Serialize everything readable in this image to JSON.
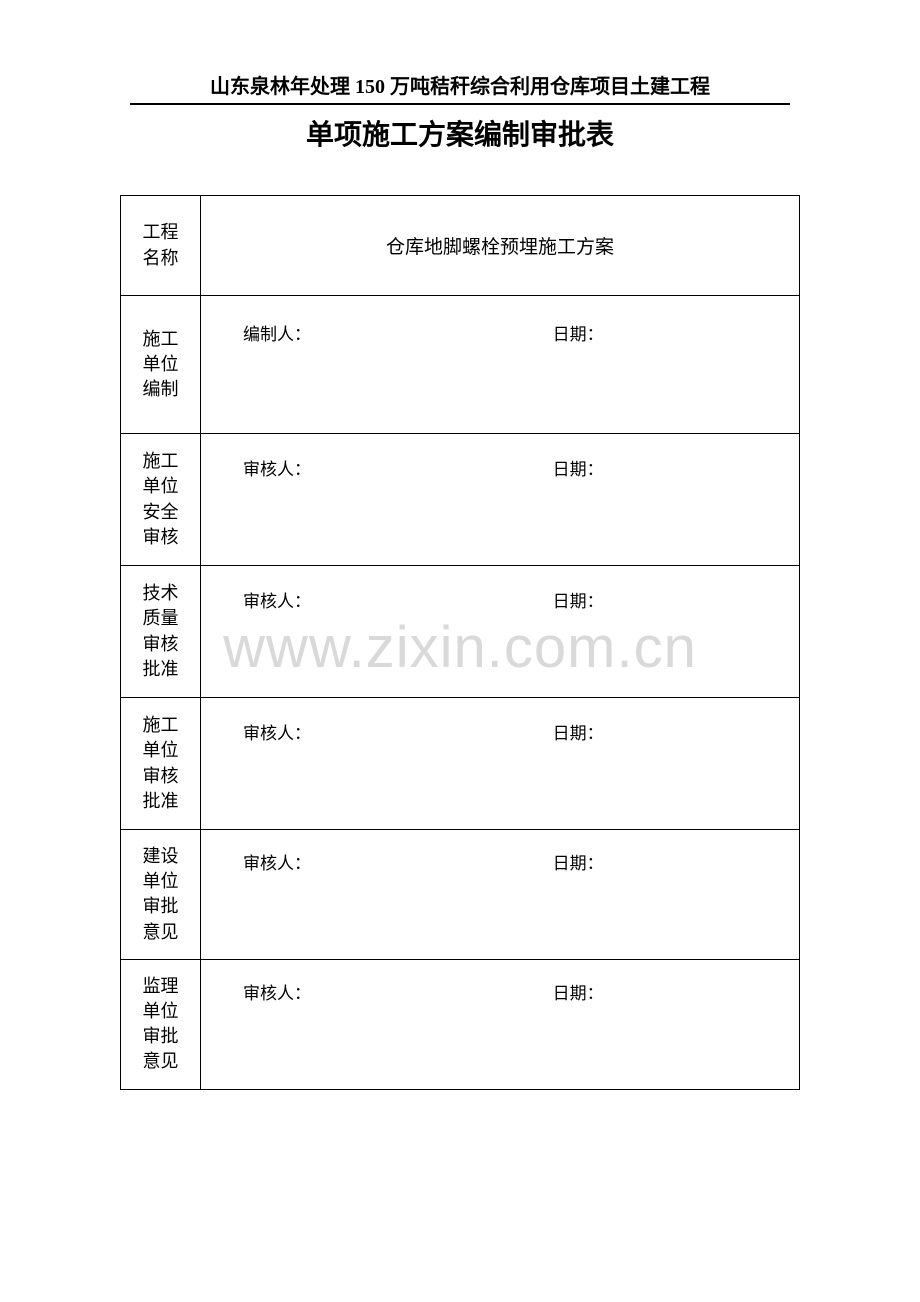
{
  "header": {
    "project_title": "山东泉林年处理 150 万吨秸秆综合利用仓库项目土建工程",
    "form_title": "单项施工方案编制审批表"
  },
  "watermark": "www.zixin.com.cn",
  "rows": [
    {
      "label": "工程\n名称",
      "content": "仓库地脚螺栓预埋施工方案",
      "type": "title"
    },
    {
      "label": "施工\n单位\n编制",
      "left_label": "编制人：",
      "right_label": "日期：",
      "type": "signature"
    },
    {
      "label": "施工\n单位\n安全\n审核",
      "left_label": "审核人：",
      "right_label": "日期：",
      "type": "signature"
    },
    {
      "label": "技术\n质量\n审核\n批准",
      "left_label": "审核人：",
      "right_label": "日期：",
      "type": "signature"
    },
    {
      "label": "施工\n单位\n审核\n批准",
      "left_label": "审核人：",
      "right_label": "日期：",
      "type": "signature"
    },
    {
      "label": "建设\n单位\n审批\n意见",
      "left_label": "审核人：",
      "right_label": "日期：",
      "type": "signature"
    },
    {
      "label": "监理\n单位\n审批\n意见",
      "left_label": "审核人：",
      "right_label": "日期：",
      "type": "signature"
    }
  ],
  "colors": {
    "background": "#ffffff",
    "text": "#000000",
    "border": "#000000",
    "watermark": "#d9d9d9"
  }
}
